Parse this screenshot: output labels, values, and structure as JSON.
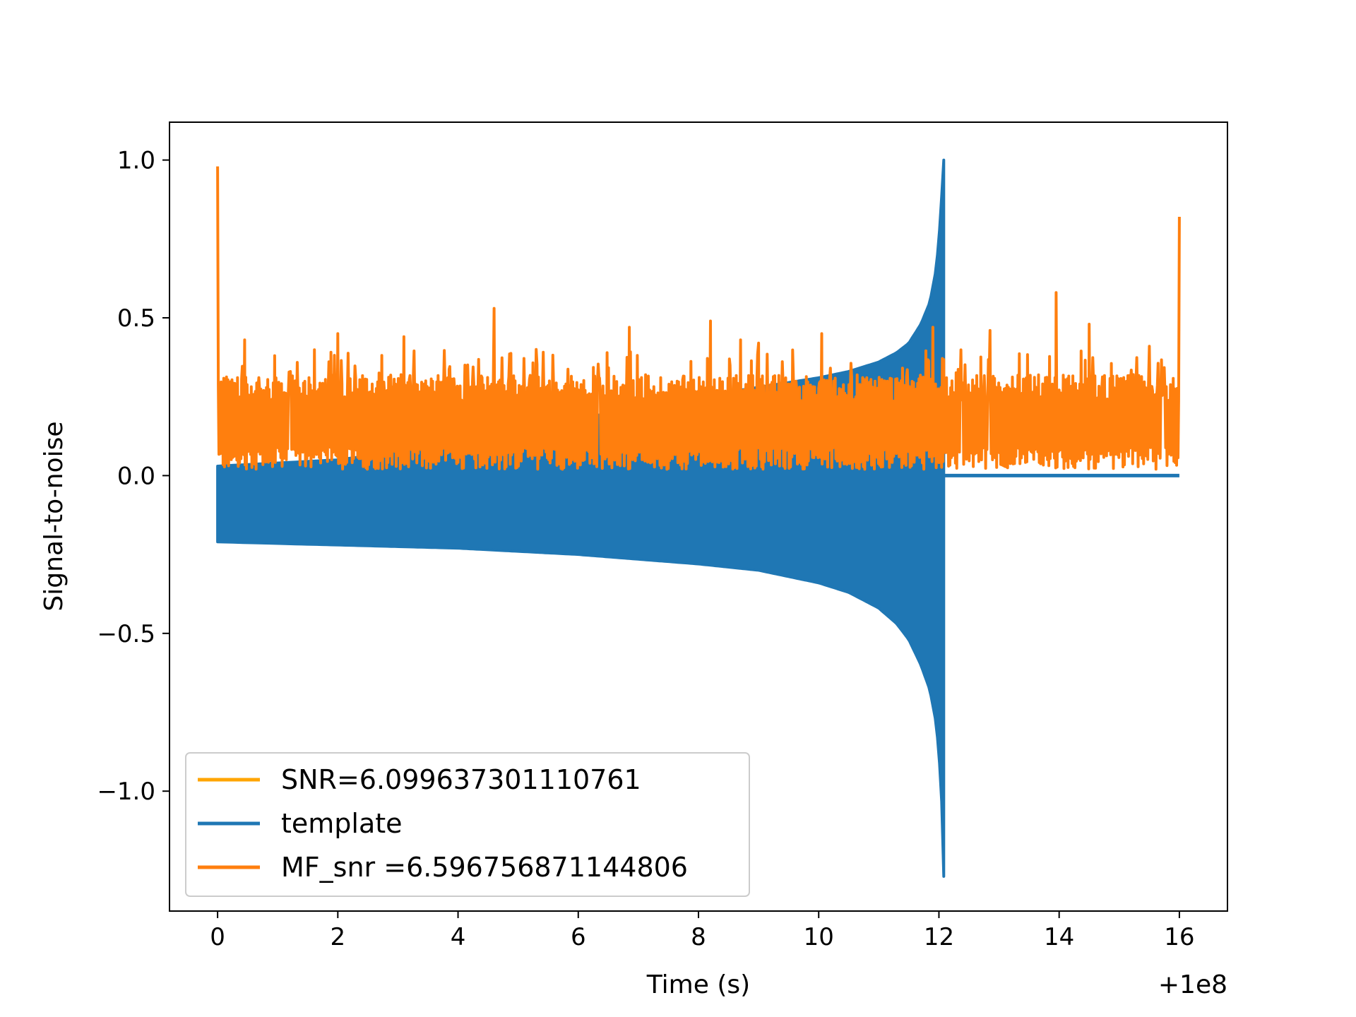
{
  "chart_data": {
    "type": "line",
    "title": "",
    "xlabel": "Time (s)",
    "ylabel": "Signal-to-noise",
    "x_offset_label": "+1e8",
    "xlim": [
      -0.8,
      16.8
    ],
    "ylim": [
      -1.38,
      1.12
    ],
    "x_ticks": [
      {
        "value": 0,
        "label": "0"
      },
      {
        "value": 2,
        "label": "2"
      },
      {
        "value": 4,
        "label": "4"
      },
      {
        "value": 6,
        "label": "6"
      },
      {
        "value": 8,
        "label": "8"
      },
      {
        "value": 10,
        "label": "10"
      },
      {
        "value": 12,
        "label": "12"
      },
      {
        "value": 14,
        "label": "14"
      },
      {
        "value": 16,
        "label": "16"
      }
    ],
    "y_ticks": [
      {
        "value": 1.0,
        "label": "1.0"
      },
      {
        "value": 0.5,
        "label": "0.5"
      },
      {
        "value": 0.0,
        "label": "0.0"
      },
      {
        "value": -0.5,
        "label": "−0.5"
      },
      {
        "value": -1.0,
        "label": "−1.0"
      }
    ],
    "grid": false,
    "legend_position": "lower-left",
    "series": [
      {
        "name": "SNR=6.099637301110761",
        "color": "#ffa500",
        "kind": "legend-only",
        "points": []
      },
      {
        "name": "template",
        "color": "#1f77b4",
        "kind": "chirp-envelope",
        "envelope": {
          "x": [
            0.0,
            2.0,
            4.0,
            6.0,
            8.0,
            9.0,
            10.0,
            10.5,
            11.0,
            11.3,
            11.5,
            11.7,
            11.85,
            11.95,
            12.0,
            12.05,
            12.08
          ],
          "upper": [
            0.03,
            0.05,
            0.1,
            0.18,
            0.25,
            0.28,
            0.31,
            0.33,
            0.36,
            0.39,
            0.42,
            0.48,
            0.55,
            0.65,
            0.75,
            0.9,
            1.0
          ],
          "lower": [
            -0.21,
            -0.22,
            -0.23,
            -0.25,
            -0.28,
            -0.3,
            -0.34,
            -0.37,
            -0.42,
            -0.47,
            -0.52,
            -0.6,
            -0.68,
            -0.78,
            -0.88,
            -1.05,
            -1.27
          ]
        },
        "tail": {
          "x": [
            12.08,
            16.0
          ],
          "y": [
            0.0,
            0.0
          ]
        }
      },
      {
        "name": " MF_snr =6.596756871144806",
        "color": "#ff7f0e",
        "kind": "noise-band",
        "x_range": [
          0.0,
          16.0
        ],
        "band": [
          0.02,
          0.28
        ],
        "peaks": [
          {
            "x": 0.0,
            "y": 0.98
          },
          {
            "x": 0.45,
            "y": 0.43
          },
          {
            "x": 0.95,
            "y": 0.38
          },
          {
            "x": 2.0,
            "y": 0.45
          },
          {
            "x": 3.1,
            "y": 0.44
          },
          {
            "x": 4.6,
            "y": 0.53
          },
          {
            "x": 5.3,
            "y": 0.4
          },
          {
            "x": 6.85,
            "y": 0.47
          },
          {
            "x": 8.2,
            "y": 0.49
          },
          {
            "x": 8.7,
            "y": 0.43
          },
          {
            "x": 9.0,
            "y": 0.42
          },
          {
            "x": 10.05,
            "y": 0.45
          },
          {
            "x": 11.9,
            "y": 0.47
          },
          {
            "x": 12.85,
            "y": 0.46
          },
          {
            "x": 13.95,
            "y": 0.58
          },
          {
            "x": 14.5,
            "y": 0.48
          },
          {
            "x": 15.5,
            "y": 0.41
          },
          {
            "x": 16.0,
            "y": 0.82
          }
        ]
      }
    ]
  }
}
